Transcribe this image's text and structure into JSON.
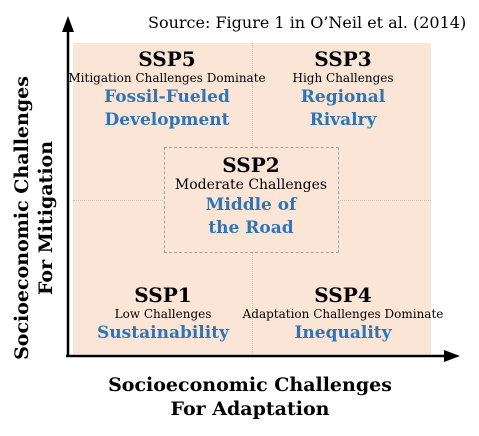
{
  "source": "Source: Figure 1 in O’Neil et al. (2014)",
  "x_axis": {
    "line1": "Socioeconomic Challenges",
    "line2": "For Adaptation"
  },
  "y_axis": {
    "line1": "Socioeconomic Challenges",
    "line2": "For Mitigation"
  },
  "colors": {
    "panel": "#fbe5d6",
    "scenario_text": "#2e75b6",
    "axis": "#000000"
  },
  "quadrants": {
    "ssp5": {
      "name": "SSP5",
      "challenge": "Mitigation Challenges Dominate",
      "scenario_line1": "Fossil-Fueled",
      "scenario_line2": "Development"
    },
    "ssp3": {
      "name": "SSP3",
      "challenge": "High Challenges",
      "scenario_line1": "Regional",
      "scenario_line2": "Rivalry"
    },
    "ssp2": {
      "name": "SSP2",
      "challenge": "Moderate Challenges",
      "scenario_line1": "Middle of",
      "scenario_line2": "the Road"
    },
    "ssp1": {
      "name": "SSP1",
      "challenge": "Low Challenges",
      "scenario_line1": "Sustainability"
    },
    "ssp4": {
      "name": "SSP4",
      "challenge": "Adaptation Challenges Dominate",
      "scenario_line1": "Inequality"
    }
  }
}
